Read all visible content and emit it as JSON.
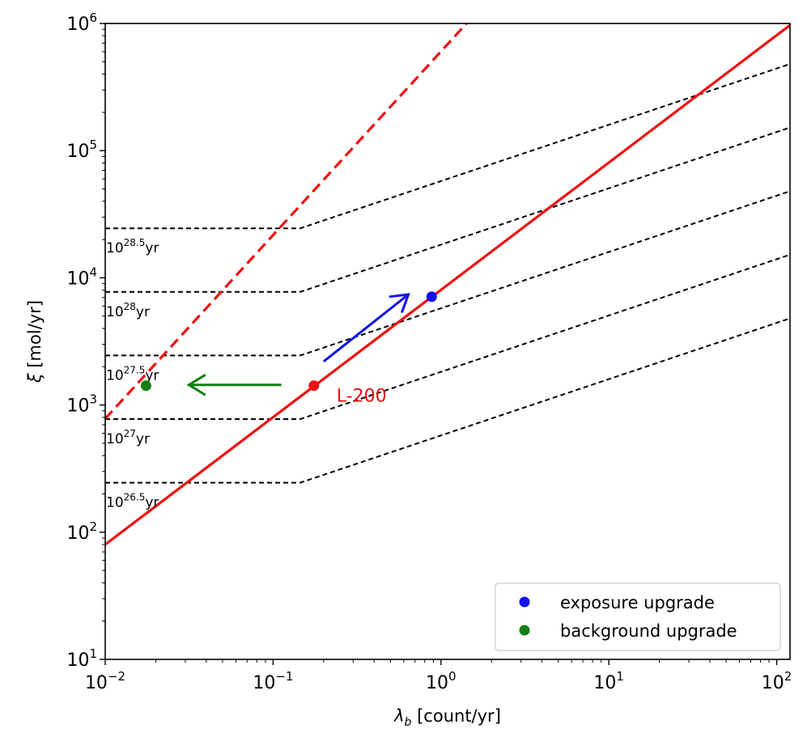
{
  "chart_data": {
    "type": "line",
    "xscale": "log",
    "yscale": "log",
    "xlim": [
      0.01,
      120
    ],
    "ylim": [
      10,
      1000000
    ],
    "xlabel": {
      "symbol": "λ",
      "sub": "b",
      "unit": "[count/yr]"
    },
    "ylabel": {
      "symbol": "ξ",
      "unit": "[mol/yr]"
    },
    "xticks": [
      {
        "value": 0.01,
        "base": "10",
        "exp": "−2"
      },
      {
        "value": 0.1,
        "base": "10",
        "exp": "−1"
      },
      {
        "value": 1,
        "base": "10",
        "exp": "0"
      },
      {
        "value": 10,
        "base": "10",
        "exp": "1"
      },
      {
        "value": 100,
        "base": "10",
        "exp": "2"
      }
    ],
    "yticks": [
      {
        "value": 10,
        "base": "10",
        "exp": "1"
      },
      {
        "value": 100,
        "base": "10",
        "exp": "2"
      },
      {
        "value": 1000,
        "base": "10",
        "exp": "3"
      },
      {
        "value": 10000,
        "base": "10",
        "exp": "4"
      },
      {
        "value": 100000,
        "base": "10",
        "exp": "5"
      },
      {
        "value": 1000000,
        "base": "10",
        "exp": "6"
      }
    ],
    "contours": [
      {
        "label_base": "10",
        "label_exp": "26.5",
        "label_unit": "yr",
        "plateau": 245,
        "knee": 0.145,
        "end": 4800
      },
      {
        "label_base": "10",
        "label_exp": "27",
        "label_unit": "yr",
        "plateau": 775,
        "knee": 0.145,
        "end": 15200
      },
      {
        "label_base": "10",
        "label_exp": "27.5",
        "label_unit": "yr",
        "plateau": 2450,
        "knee": 0.145,
        "end": 48000
      },
      {
        "label_base": "10",
        "label_exp": "28",
        "label_unit": "yr",
        "plateau": 7750,
        "knee": 0.145,
        "end": 152000
      },
      {
        "label_base": "10",
        "label_exp": "28.5",
        "label_unit": "yr",
        "plateau": 24500,
        "knee": 0.145,
        "end": 480000
      }
    ],
    "series": [
      {
        "name": "solid red line",
        "style": "solid",
        "color": "#ee1111",
        "points": [
          [
            0.01,
            80
          ],
          [
            120,
            970000
          ]
        ]
      },
      {
        "name": "dashed red line",
        "style": "dashed",
        "color": "#ee1111",
        "points": [
          [
            0.01,
            780
          ],
          [
            1.42,
            1000000
          ]
        ]
      }
    ],
    "markers": [
      {
        "name": "L-200",
        "x": 0.175,
        "y": 1420,
        "color": "#ee1111",
        "label": "L-200"
      },
      {
        "name": "exposure upgrade",
        "x": 0.88,
        "y": 7100,
        "color": "#1111ee"
      },
      {
        "name": "background upgrade",
        "x": 0.0175,
        "y": 1420,
        "color": "#118011"
      }
    ],
    "arrows": [
      {
        "name": "exposure-arrow",
        "color": "#1111ee",
        "from": [
          0.2,
          2200
        ],
        "to": [
          0.64,
          7400
        ]
      },
      {
        "name": "background-arrow",
        "color": "#118011",
        "from": [
          0.112,
          1440
        ],
        "to": [
          0.0315,
          1440
        ]
      }
    ],
    "legend": {
      "position": "bottom-right",
      "entries": [
        {
          "label": "exposure upgrade",
          "color": "#1111ee"
        },
        {
          "label": "background upgrade",
          "color": "#118011"
        }
      ]
    }
  }
}
